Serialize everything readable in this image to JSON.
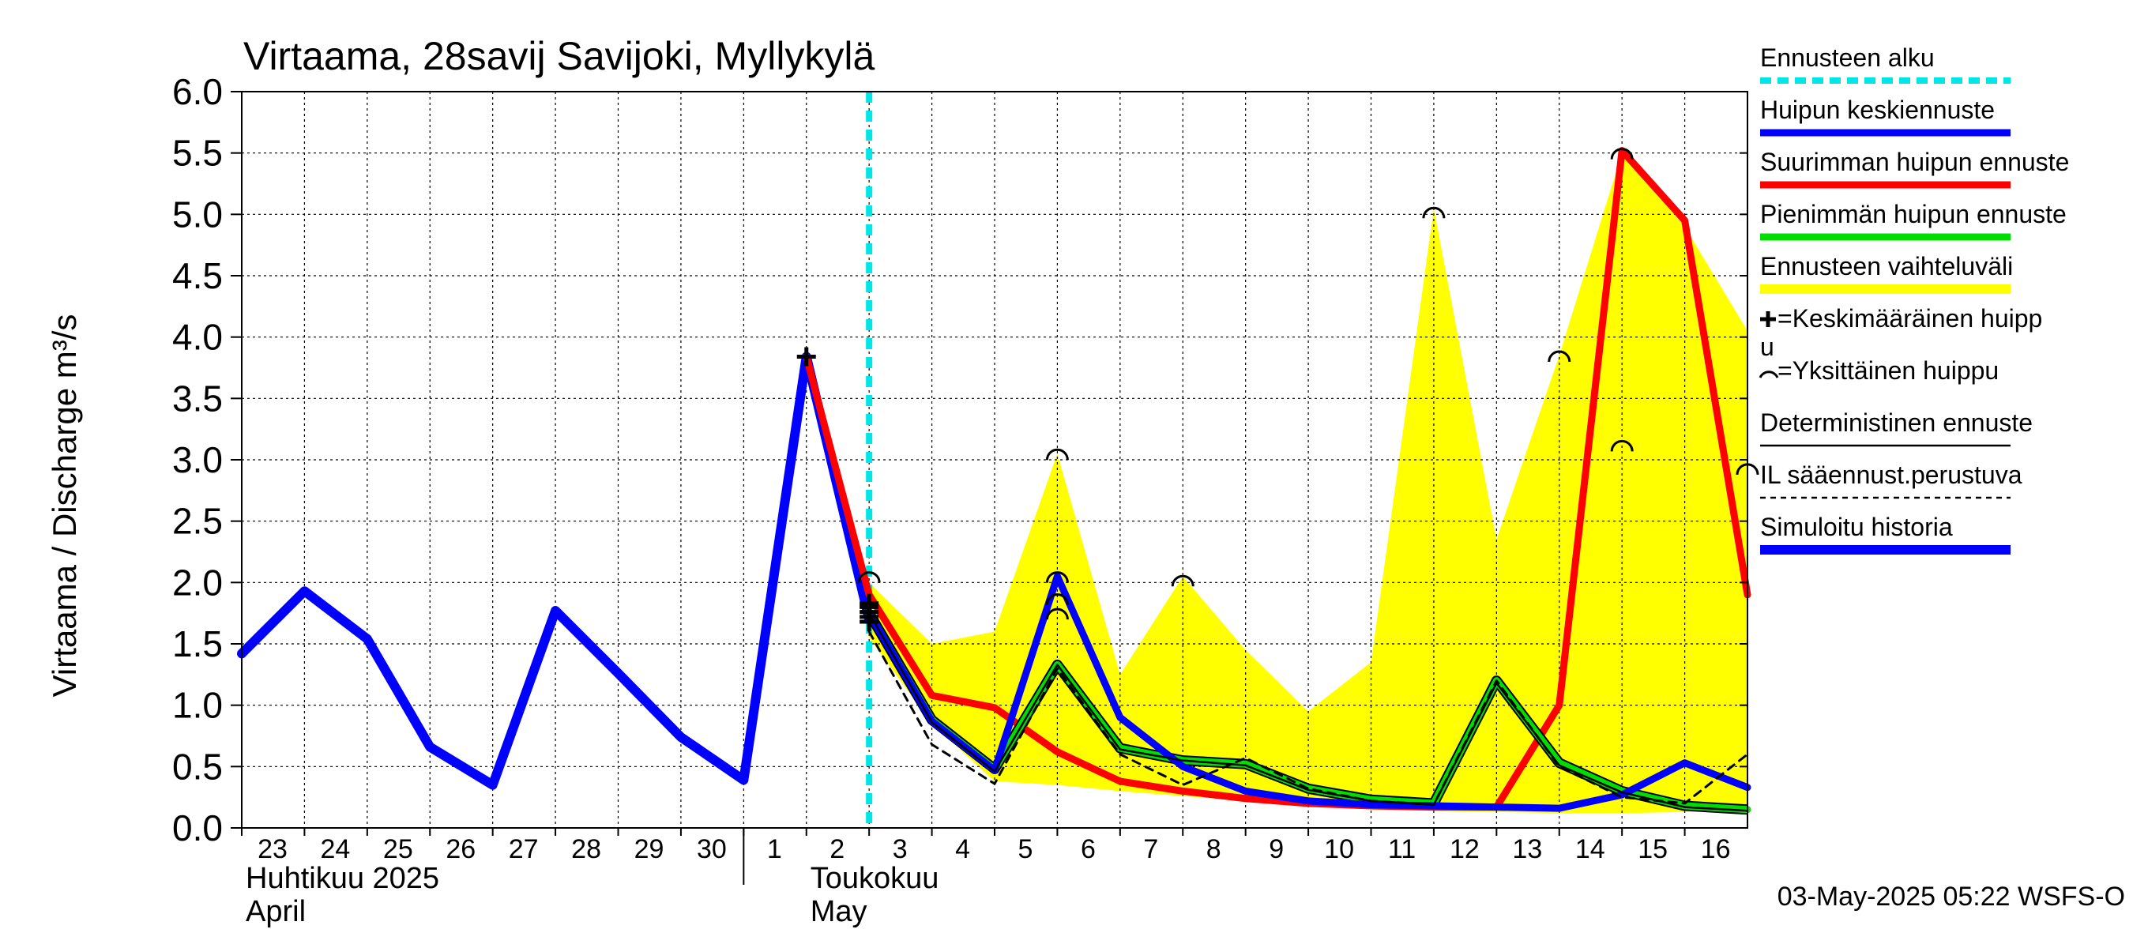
{
  "chart_data": {
    "type": "line",
    "title": "Virtaama, 28savij Savijoki, Myllykylä",
    "ylabel": "Virtaama / Discharge    m³/s",
    "ylim": [
      0,
      6
    ],
    "yticks": [
      "0.0",
      "0.5",
      "1.0",
      "1.5",
      "2.0",
      "2.5",
      "3.0",
      "3.5",
      "4.0",
      "4.5",
      "5.0",
      "5.5",
      "6.0"
    ],
    "xlim": [
      0,
      24
    ],
    "day_labels": [
      "23",
      "24",
      "25",
      "26",
      "27",
      "28",
      "29",
      "30",
      "1",
      "2",
      "3",
      "4",
      "5",
      "6",
      "7",
      "8",
      "9",
      "10",
      "11",
      "12",
      "13",
      "14",
      "15",
      "16"
    ],
    "month_labels": [
      {
        "fi": "Huhtikuu  2025",
        "en": "April",
        "x": 0
      },
      {
        "fi": "Toukokuu",
        "en": "May",
        "x": 9
      }
    ],
    "month_divider_x": 8,
    "forecast_start_x": 10,
    "footer": "03-May-2025 05:22 WSFS-O",
    "series": [
      {
        "name": "Ennusteen vaihteluväli",
        "type": "band",
        "color": "#ffff00",
        "upper": [
          [
            10,
            2.0
          ],
          [
            11,
            1.5
          ],
          [
            12,
            1.6
          ],
          [
            13,
            3.05
          ],
          [
            14,
            1.25
          ],
          [
            15,
            2.05
          ],
          [
            16,
            1.45
          ],
          [
            17,
            0.95
          ],
          [
            18,
            1.35
          ],
          [
            19,
            5.05
          ],
          [
            20,
            2.35
          ],
          [
            21,
            3.85
          ],
          [
            22,
            5.5
          ],
          [
            23,
            4.9
          ],
          [
            24,
            4.05
          ]
        ],
        "lower": [
          [
            24,
            0.13
          ],
          [
            23,
            0.13
          ],
          [
            22,
            0.12
          ],
          [
            21,
            0.12
          ],
          [
            20,
            0.13
          ],
          [
            19,
            0.14
          ],
          [
            18,
            0.15
          ],
          [
            17,
            0.18
          ],
          [
            16,
            0.22
          ],
          [
            15,
            0.26
          ],
          [
            14,
            0.3
          ],
          [
            13,
            0.35
          ],
          [
            12,
            0.38
          ],
          [
            11,
            0.85
          ],
          [
            10,
            1.55
          ]
        ]
      },
      {
        "name": "Simuloitu historia",
        "type": "line",
        "color": "#0000ff",
        "width": 12,
        "points": [
          [
            0,
            1.42
          ],
          [
            1,
            1.93
          ],
          [
            2,
            1.54
          ],
          [
            3,
            0.66
          ],
          [
            4,
            0.35
          ],
          [
            5,
            1.77
          ],
          [
            6,
            1.26
          ],
          [
            7,
            0.74
          ],
          [
            8,
            0.39
          ],
          [
            9,
            3.84
          ],
          [
            10,
            1.7
          ]
        ]
      },
      {
        "name": "Suurimman huipun ennuste",
        "type": "line",
        "color": "#ff0000",
        "width": 9,
        "points": [
          [
            9,
            3.84
          ],
          [
            10,
            1.9
          ],
          [
            11,
            1.08
          ],
          [
            12,
            0.98
          ],
          [
            13,
            0.62
          ],
          [
            14,
            0.38
          ],
          [
            15,
            0.3
          ],
          [
            16,
            0.24
          ],
          [
            17,
            0.2
          ],
          [
            18,
            0.18
          ],
          [
            19,
            0.17
          ],
          [
            20,
            0.17
          ],
          [
            21,
            1.0
          ],
          [
            22,
            5.52
          ],
          [
            23,
            4.95
          ],
          [
            24,
            1.9
          ]
        ]
      },
      {
        "name": "Pienimmän huipun ennuste",
        "type": "line",
        "color": "#00dd00",
        "width": 9,
        "points": [
          [
            10,
            1.75
          ],
          [
            11,
            0.88
          ],
          [
            12,
            0.48
          ],
          [
            13,
            1.33
          ],
          [
            14,
            0.65
          ],
          [
            15,
            0.55
          ],
          [
            16,
            0.52
          ],
          [
            17,
            0.32
          ],
          [
            18,
            0.23
          ],
          [
            19,
            0.2
          ],
          [
            20,
            1.2
          ],
          [
            21,
            0.53
          ],
          [
            22,
            0.3
          ],
          [
            23,
            0.18
          ],
          [
            24,
            0.15
          ]
        ]
      },
      {
        "name": "Huipun keskiennuste",
        "type": "line",
        "color": "#0000ff",
        "width": 9,
        "points": [
          [
            10,
            1.75
          ],
          [
            11,
            0.87
          ],
          [
            12,
            0.47
          ],
          [
            13,
            2.05
          ],
          [
            14,
            0.9
          ],
          [
            15,
            0.5
          ],
          [
            16,
            0.3
          ],
          [
            17,
            0.22
          ],
          [
            18,
            0.19
          ],
          [
            19,
            0.18
          ],
          [
            20,
            0.17
          ],
          [
            21,
            0.16
          ],
          [
            22,
            0.27
          ],
          [
            23,
            0.53
          ],
          [
            24,
            0.33
          ]
        ]
      },
      {
        "name": "Deterministinen ennuste",
        "type": "line",
        "color": "#000000",
        "width": 2.5,
        "points": [
          [
            10,
            1.75
          ],
          [
            11,
            0.86
          ],
          [
            12,
            0.46
          ],
          [
            13,
            1.33
          ],
          [
            14,
            0.64
          ],
          [
            15,
            0.55
          ],
          [
            16,
            0.51
          ],
          [
            17,
            0.31
          ],
          [
            18,
            0.22
          ],
          [
            19,
            0.19
          ],
          [
            20,
            1.18
          ],
          [
            21,
            0.51
          ],
          [
            22,
            0.29
          ],
          [
            23,
            0.17
          ],
          [
            24,
            0.14
          ]
        ]
      },
      {
        "name": "IL sääennust.perustuva",
        "type": "line",
        "color": "#000000",
        "width": 3,
        "dashed": true,
        "points": [
          [
            10,
            1.6
          ],
          [
            11,
            0.68
          ],
          [
            12,
            0.36
          ],
          [
            13,
            1.3
          ],
          [
            14,
            0.6
          ],
          [
            15,
            0.35
          ],
          [
            16,
            0.57
          ],
          [
            17,
            0.32
          ],
          [
            18,
            0.22
          ],
          [
            19,
            0.19
          ],
          [
            20,
            1.2
          ],
          [
            21,
            0.5
          ],
          [
            22,
            0.25
          ],
          [
            23,
            0.2
          ],
          [
            24,
            0.6
          ]
        ]
      }
    ],
    "individual_peaks": [
      [
        10,
        2.05
      ],
      [
        13,
        3.05
      ],
      [
        13,
        2.05
      ],
      [
        13,
        1.87
      ],
      [
        13,
        1.75
      ],
      [
        15,
        2.02
      ],
      [
        19,
        5.02
      ],
      [
        21,
        3.85
      ],
      [
        22,
        5.5
      ],
      [
        22,
        3.12
      ],
      [
        24,
        2.93
      ]
    ],
    "mean_peaks": [
      [
        9,
        3.84
      ],
      [
        10,
        1.83
      ],
      [
        10,
        1.8
      ],
      [
        10,
        1.76
      ],
      [
        10,
        1.72
      ],
      [
        10,
        1.68
      ]
    ],
    "legend": [
      {
        "label": "Ennusteen alku",
        "style": "dashed",
        "color": "#00e5e5"
      },
      {
        "label": "Huipun keskiennuste",
        "style": "solid",
        "color": "#0000ff"
      },
      {
        "label": "Suurimman huipun ennuste",
        "style": "solid",
        "color": "#ff0000"
      },
      {
        "label": "Pienimmän huipun ennuste",
        "style": "solid",
        "color": "#00dd00"
      },
      {
        "label": "Ennusteen vaihteluväli",
        "style": "band",
        "color": "#ffff00"
      },
      {
        "label": "=Keskimääräinen huipp",
        "label2": "u",
        "style": "plus-marker",
        "color": "#000000"
      },
      {
        "label": "=Yksittäinen huippu",
        "style": "arc-marker",
        "color": "#000000"
      },
      {
        "label": "Deterministinen ennuste",
        "style": "thin",
        "color": "#000000"
      },
      {
        "label": "IL sääennust.perustuva",
        "style": "dotted",
        "color": "#000000"
      },
      {
        "label": "Simuloitu historia",
        "style": "thick",
        "color": "#0000ff"
      }
    ]
  }
}
